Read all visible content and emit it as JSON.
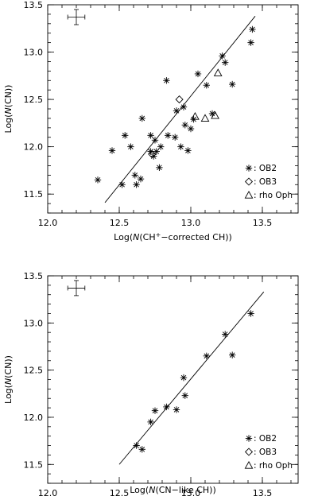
{
  "chart_data": [
    {
      "type": "scatter",
      "xlabel_parts": [
        "Log(",
        "N",
        "(CH",
        "+",
        "−corrected CH))"
      ],
      "ylabel_parts": [
        "Log(",
        "N",
        "(CN))"
      ],
      "xlim": [
        12.0,
        13.75
      ],
      "ylim": [
        11.3,
        13.5
      ],
      "xticks": [
        "12.0",
        "12.5",
        "13.0",
        "13.5"
      ],
      "yticks": [
        "11.5",
        "12.0",
        "12.5",
        "13.0",
        "13.5"
      ],
      "fit_line": {
        "x": [
          12.4,
          13.45
        ],
        "y": [
          11.41,
          13.38
        ]
      },
      "error_bar": {
        "x": 12.2,
        "y": 13.37,
        "dx": 0.06,
        "dy": 0.08
      },
      "legend_position": "bottom-right",
      "series": [
        {
          "name": "OB2",
          "marker": "asterisk",
          "points": [
            [
              12.35,
              11.65
            ],
            [
              12.45,
              11.96
            ],
            [
              12.52,
              11.6
            ],
            [
              12.54,
              12.12
            ],
            [
              12.58,
              12.0
            ],
            [
              12.61,
              11.7
            ],
            [
              12.62,
              11.6
            ],
            [
              12.65,
              11.66
            ],
            [
              12.66,
              12.3
            ],
            [
              12.72,
              11.95
            ],
            [
              12.72,
              12.12
            ],
            [
              12.74,
              11.9
            ],
            [
              12.75,
              12.07
            ],
            [
              12.76,
              11.95
            ],
            [
              12.78,
              11.78
            ],
            [
              12.79,
              12.0
            ],
            [
              12.83,
              12.7
            ],
            [
              12.84,
              12.12
            ],
            [
              12.89,
              12.1
            ],
            [
              12.9,
              12.38
            ],
            [
              12.93,
              12.0
            ],
            [
              12.95,
              12.42
            ],
            [
              12.96,
              12.23
            ],
            [
              12.98,
              11.96
            ],
            [
              13.0,
              12.19
            ],
            [
              13.02,
              12.29
            ],
            [
              13.05,
              12.77
            ],
            [
              13.11,
              12.65
            ],
            [
              13.15,
              12.35
            ],
            [
              13.22,
              12.96
            ],
            [
              13.24,
              12.89
            ],
            [
              13.29,
              12.66
            ],
            [
              13.42,
              13.1
            ],
            [
              13.43,
              13.24
            ]
          ]
        },
        {
          "name": "OB3",
          "marker": "diamond",
          "points": [
            [
              12.73,
              11.92
            ],
            [
              12.92,
              12.5
            ]
          ]
        },
        {
          "name": "rho Oph",
          "marker": "triangle",
          "points": [
            [
              13.03,
              12.32
            ],
            [
              13.1,
              12.3
            ],
            [
              13.17,
              12.33
            ],
            [
              13.19,
              12.78
            ]
          ]
        }
      ]
    },
    {
      "type": "scatter",
      "xlabel_parts": [
        "Log(",
        "N",
        "(CN−like CH))"
      ],
      "ylabel_parts": [
        "Log(",
        "N",
        "(CN))"
      ],
      "xlim": [
        12.0,
        13.75
      ],
      "ylim": [
        11.3,
        13.5
      ],
      "xticks": [
        "12.0",
        "12.5",
        "13.0",
        "13.5"
      ],
      "yticks": [
        "11.5",
        "12.0",
        "12.5",
        "13.0",
        "13.5"
      ],
      "fit_line": {
        "x": [
          12.5,
          13.51
        ],
        "y": [
          11.5,
          13.33
        ]
      },
      "error_bar": {
        "x": 12.2,
        "y": 13.37,
        "dx": 0.06,
        "dy": 0.08
      },
      "legend_position": "bottom-right",
      "series": [
        {
          "name": "OB2",
          "marker": "asterisk",
          "points": [
            [
              12.62,
              11.7
            ],
            [
              12.66,
              11.66
            ],
            [
              12.72,
              11.95
            ],
            [
              12.75,
              12.07
            ],
            [
              12.83,
              12.11
            ],
            [
              12.9,
              12.08
            ],
            [
              12.95,
              12.42
            ],
            [
              12.96,
              12.23
            ],
            [
              13.11,
              12.65
            ],
            [
              13.24,
              12.88
            ],
            [
              13.29,
              12.66
            ],
            [
              13.42,
              13.1
            ]
          ]
        },
        {
          "name": "OB3",
          "marker": "diamond",
          "points": []
        },
        {
          "name": "rho Oph",
          "marker": "triangle",
          "points": []
        }
      ]
    }
  ],
  "legend_prefix": ":"
}
